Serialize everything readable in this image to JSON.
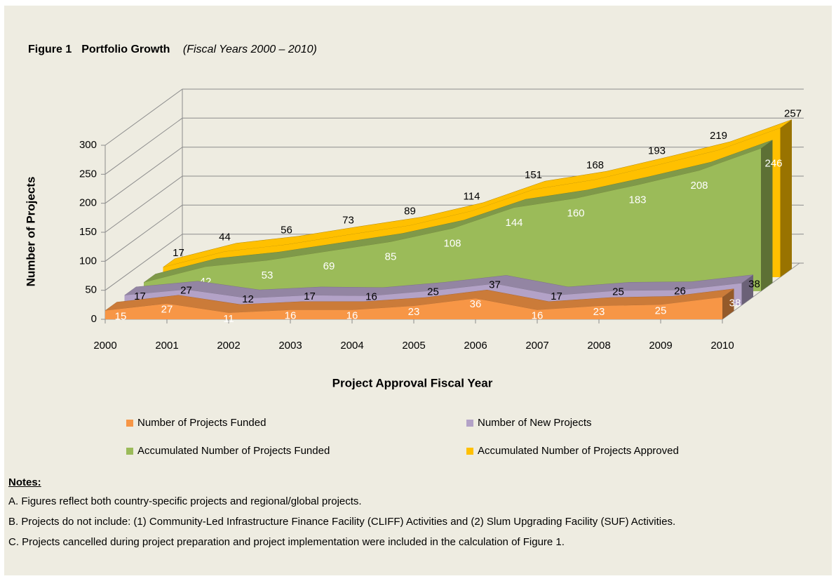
{
  "figure_label": "Figure 1",
  "chart_data": {
    "type": "area3d",
    "title": "Portfolio Growth",
    "subtitle": "(Fiscal Years 2000 – 2010)",
    "x_label": "Project Approval Fiscal Year",
    "y_label": "Number of Projects",
    "categories": [
      "2000",
      "2001",
      "2002",
      "2003",
      "2004",
      "2005",
      "2006",
      "2007",
      "2008",
      "2009",
      "2010"
    ],
    "series": [
      {
        "name": "Number of Projects Funded",
        "color": "#f79646",
        "values": [
          15,
          27,
          11,
          16,
          16,
          23,
          36,
          16,
          23,
          25,
          38
        ]
      },
      {
        "name": "Number of New Projects",
        "color": "#b3a2c7",
        "values": [
          17,
          27,
          12,
          17,
          16,
          25,
          37,
          17,
          25,
          26,
          38
        ]
      },
      {
        "name": "Accumulated Number of Projects Funded",
        "color": "#9bbb59",
        "values": [
          15,
          42,
          53,
          69,
          85,
          108,
          144,
          160,
          183,
          208,
          246
        ]
      },
      {
        "name": "Accumulated Number of Projects Approved",
        "color": "#ffc000",
        "values": [
          17,
          44,
          56,
          73,
          89,
          114,
          151,
          168,
          193,
          219,
          257
        ]
      }
    ],
    "ylim": [
      0,
      300
    ],
    "yticks": [
      0,
      50,
      100,
      150,
      200,
      250,
      300
    ],
    "grid": true,
    "legend": "bottom"
  },
  "notes": {
    "title": "Notes:",
    "items": [
      "A. Figures reflect both country-specific projects and regional/global projects.",
      "B. Projects do not include: (1) Community-Led Infrastructure Finance Facility (CLIFF) Activities and (2) Slum Upgrading Facility (SUF) Activities.",
      "C. Projects cancelled during project preparation and project implementation were included in the calculation of Figure 1."
    ]
  }
}
